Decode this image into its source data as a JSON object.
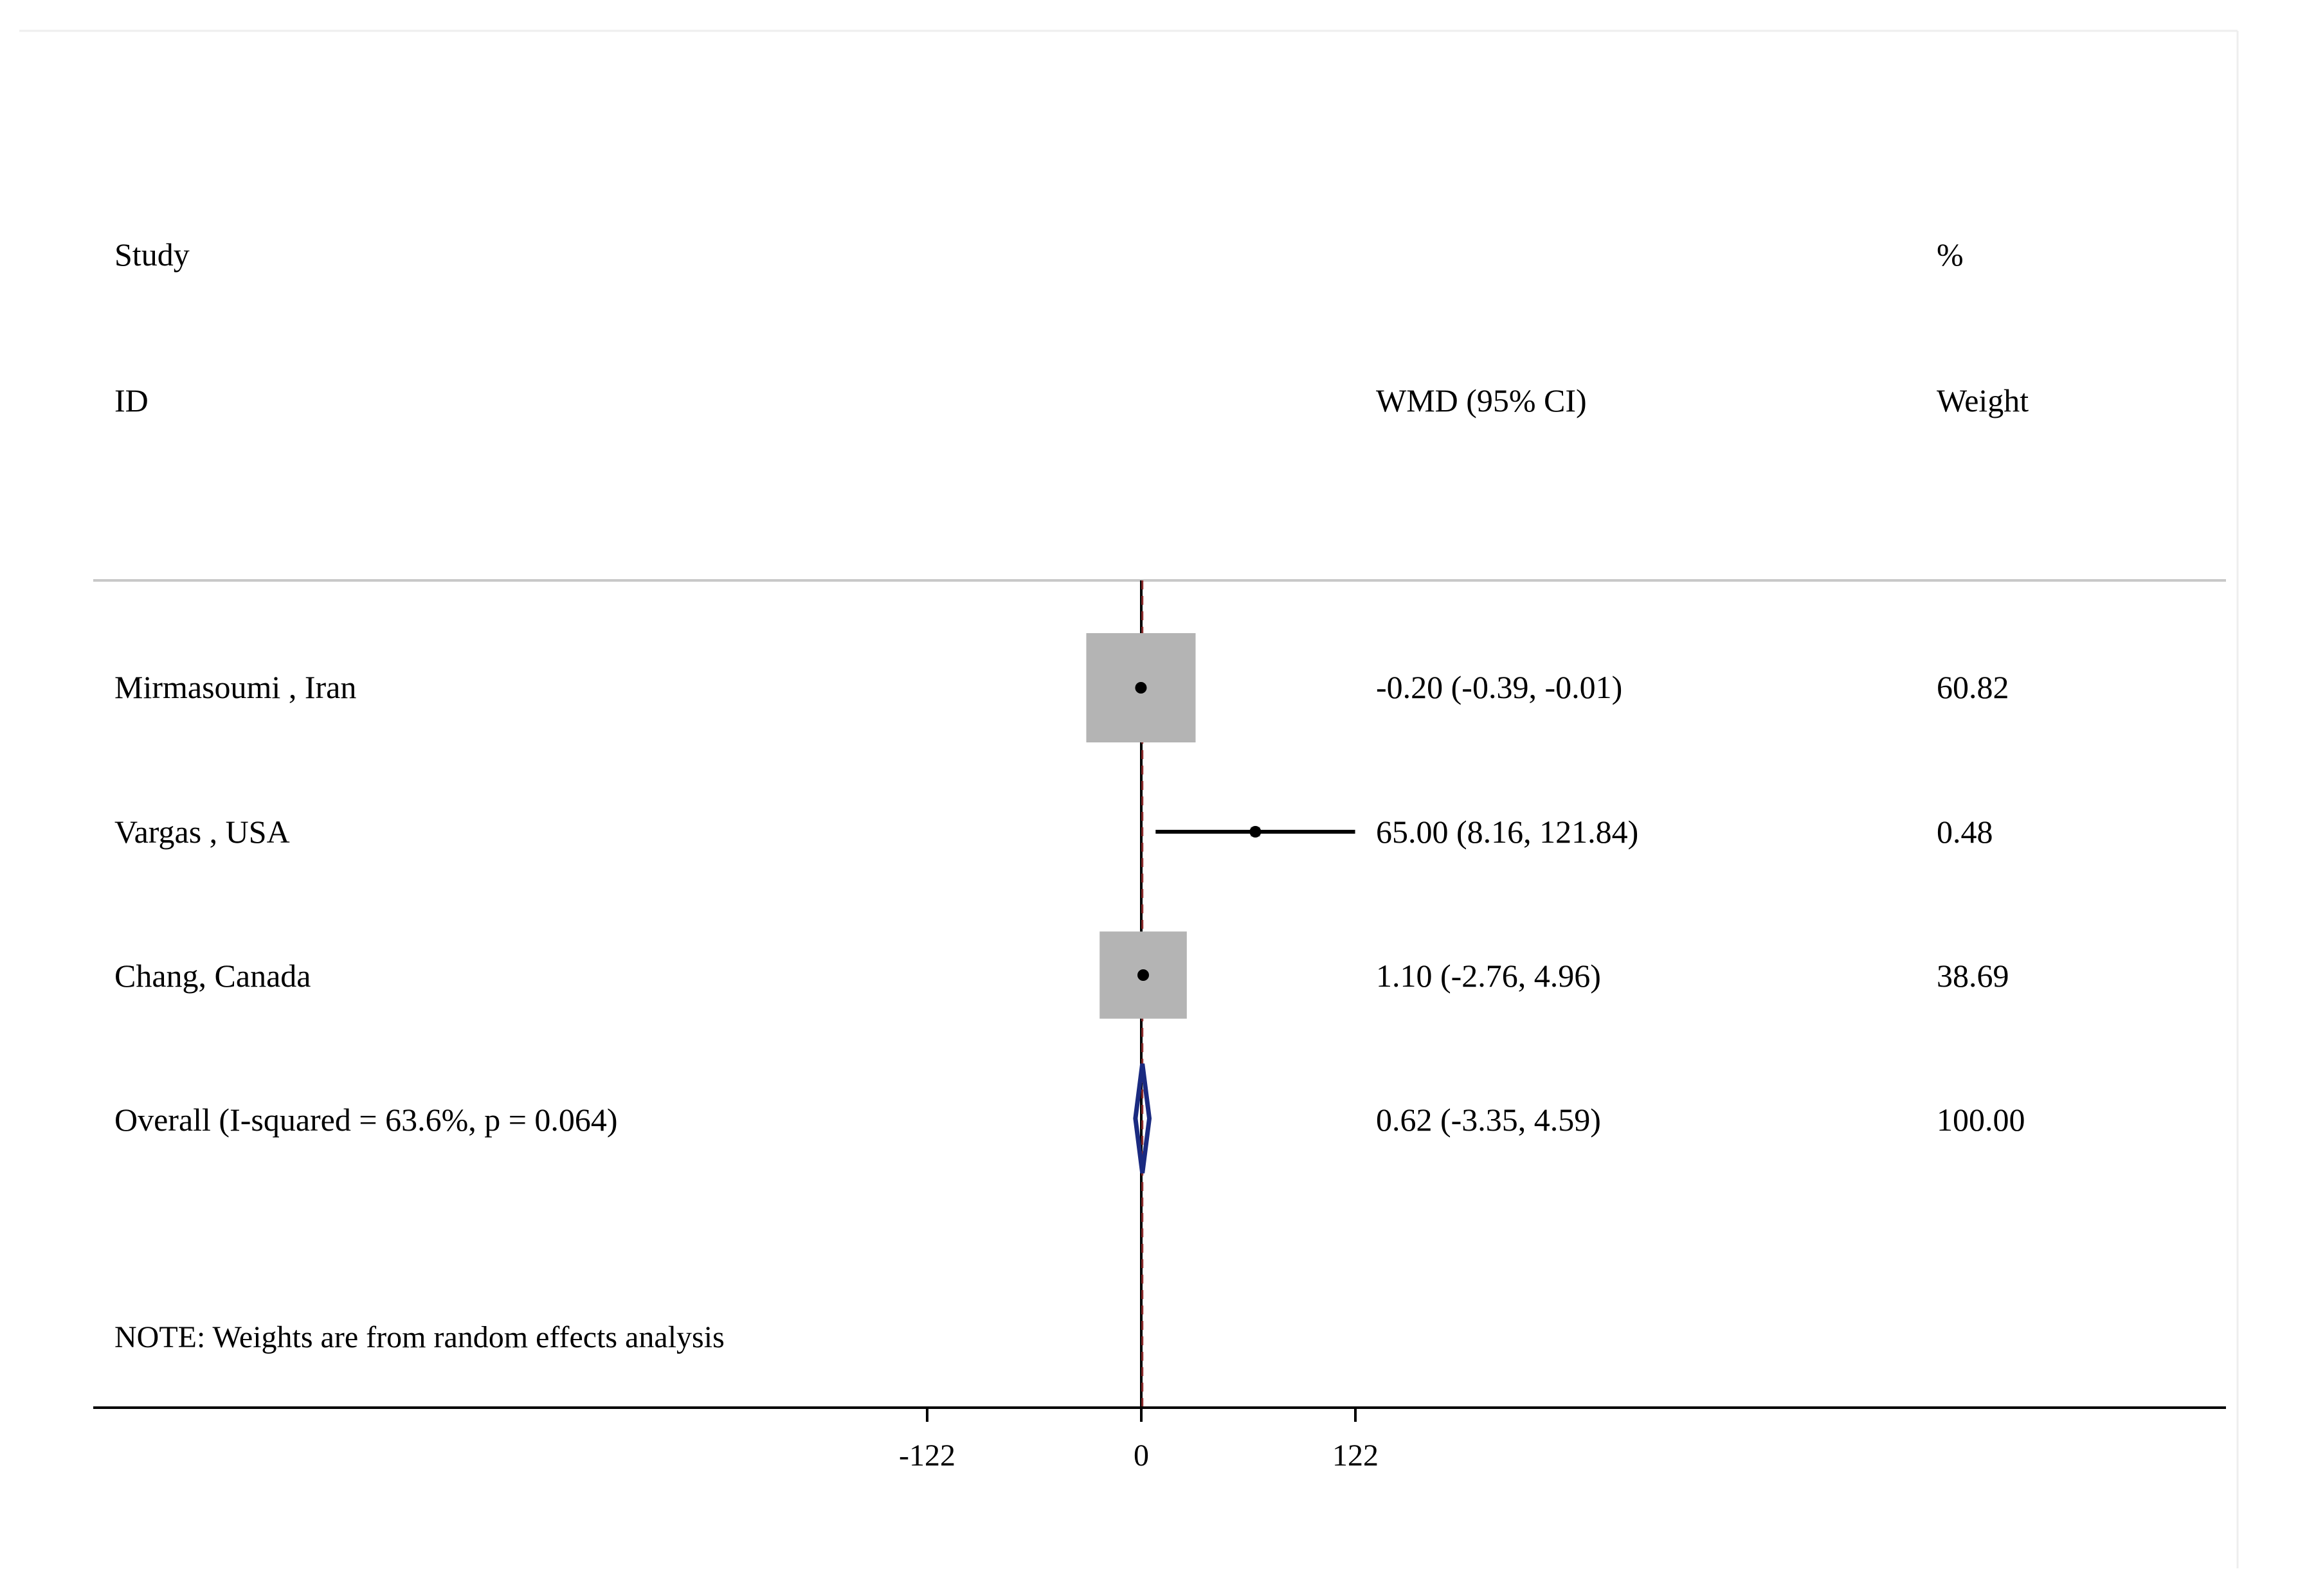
{
  "header": {
    "study_label": "Study",
    "id_label": "ID",
    "effect_label": "WMD (95% CI)",
    "percent_label": "%",
    "weight_label": "Weight"
  },
  "note": "NOTE: Weights are from random effects analysis",
  "colors": {
    "box": "#b4b4b4",
    "diamond": "#1a2a80",
    "null_line": "#000000",
    "dashed_line": "#8b2b2b",
    "rule": "#c8c8c8",
    "text": "#000000"
  },
  "chart_data": {
    "type": "forest",
    "xlim": [
      -122,
      122
    ],
    "null_value": 0,
    "ticks": [
      {
        "value": -122,
        "label": "-122"
      },
      {
        "value": 0,
        "label": "0"
      },
      {
        "value": 122,
        "label": "122"
      }
    ],
    "studies": [
      {
        "name": "Mirmasoumi , Iran",
        "estimate": -0.2,
        "lower": -0.39,
        "upper": -0.01,
        "ci_text": "-0.20 (-0.39, -0.01)",
        "weight": 60.82,
        "weight_text": "60.82"
      },
      {
        "name": "Vargas , USA",
        "estimate": 65.0,
        "lower": 8.16,
        "upper": 121.84,
        "ci_text": "65.00 (8.16, 121.84)",
        "weight": 0.48,
        "weight_text": "0.48"
      },
      {
        "name": "Chang, Canada",
        "estimate": 1.1,
        "lower": -2.76,
        "upper": 4.96,
        "ci_text": "1.10 (-2.76, 4.96)",
        "weight": 38.69,
        "weight_text": "38.69"
      }
    ],
    "overall": {
      "label": "Overall  (I-squared = 63.6%, p = 0.064)",
      "estimate": 0.62,
      "lower": -3.35,
      "upper": 4.59,
      "ci_text": "0.62 (-3.35, 4.59)",
      "weight_text": "100.00"
    }
  }
}
